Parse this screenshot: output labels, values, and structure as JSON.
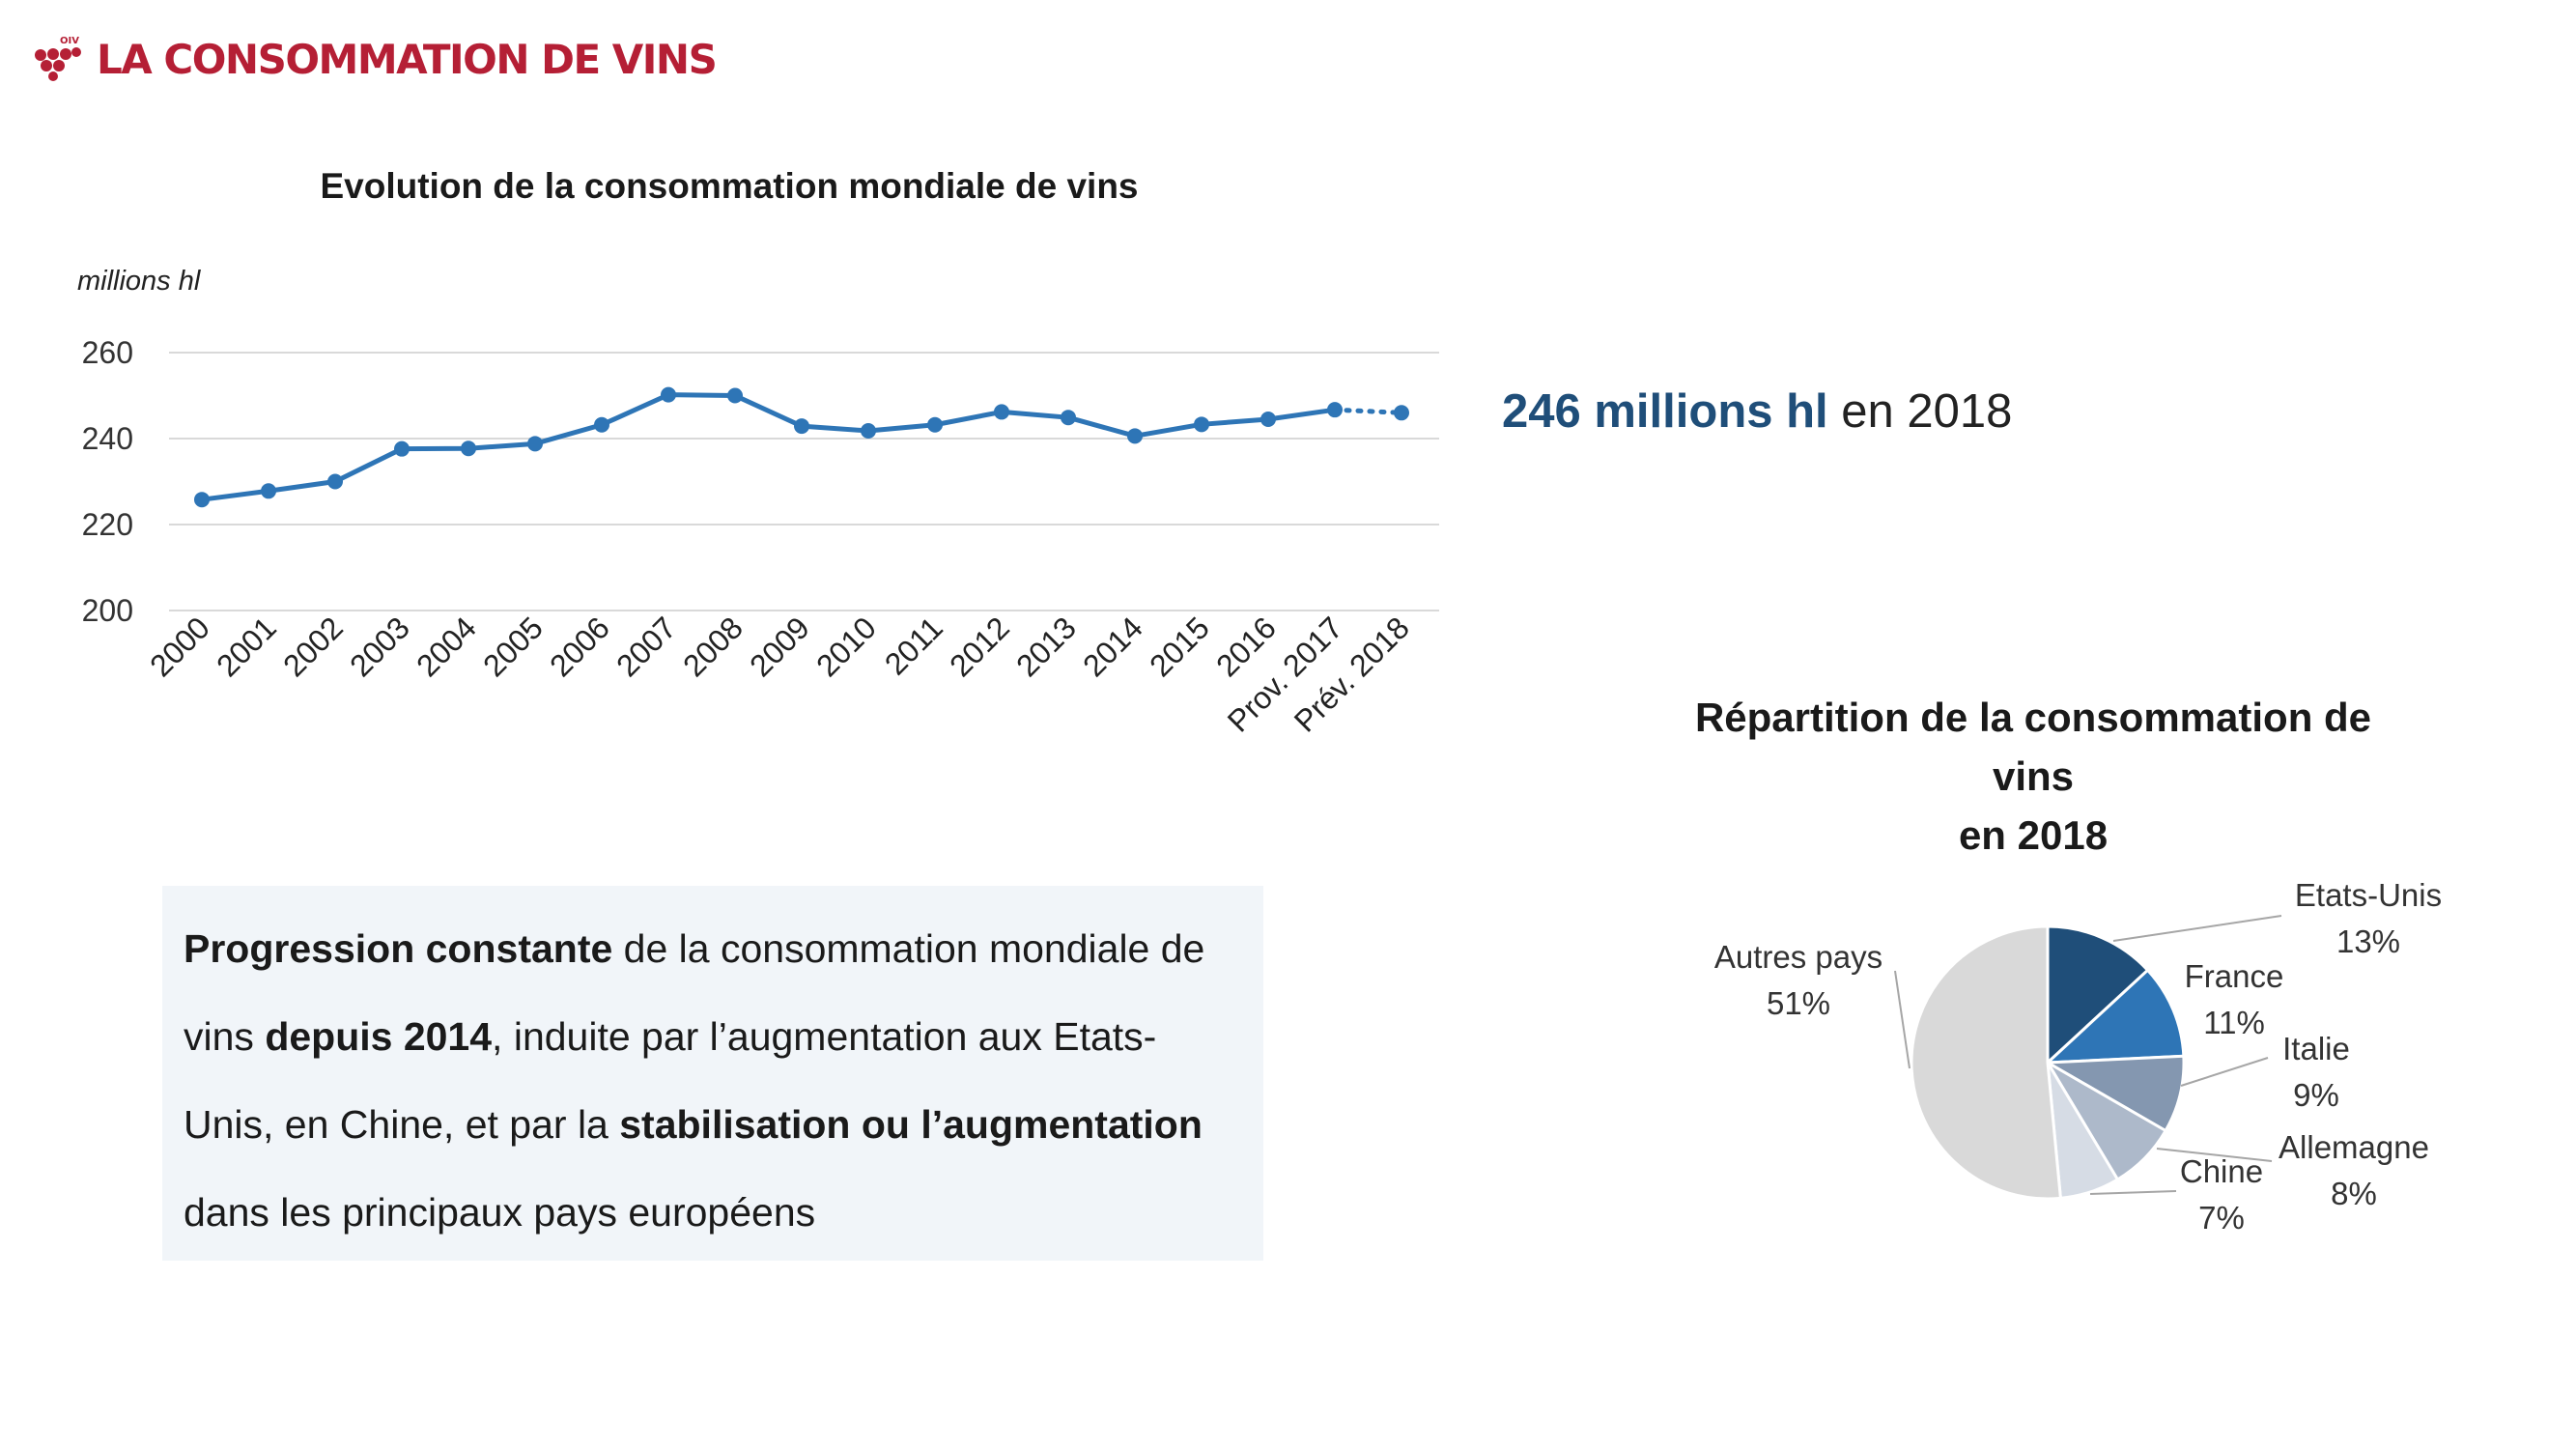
{
  "header": {
    "title": "LA CONSOMMATION DE VINS",
    "logo_icon": "grape-cluster-icon",
    "logo_text": "OIV",
    "brand_color": "#b51f35"
  },
  "headline": {
    "emphasis": "246 millions hl",
    "rest": " en 2018",
    "accent_color": "#1f4e79"
  },
  "text_box": {
    "p1_bold": "Progression constante",
    "p2": " de la consommation mondiale de vins ",
    "p3_bold": "depuis 2014",
    "p4": ", induite par l’augmentation aux Etats-Unis, en Chine, et par la ",
    "p5_bold": "stabilisation ou l’augmentation",
    "p6": " dans les principaux pays européens"
  },
  "chart_data": [
    {
      "type": "line",
      "title": "Evolution de la consommation mondiale de vins",
      "ylabel": "millions hl",
      "xlabel": "",
      "ylim": [
        200,
        260
      ],
      "yticks": [
        200,
        220,
        240,
        260
      ],
      "grid": true,
      "categories": [
        "2000",
        "2001",
        "2002",
        "2003",
        "2004",
        "2005",
        "2006",
        "2007",
        "2008",
        "2009",
        "2010",
        "2011",
        "2012",
        "2013",
        "2014",
        "2015",
        "2016",
        "Prov. 2017",
        "Prév. 2018"
      ],
      "series": [
        {
          "name": "Consommation mondiale",
          "values": [
            225.8,
            227.8,
            230.0,
            237.6,
            237.7,
            238.8,
            243.2,
            250.2,
            250.0,
            242.9,
            241.8,
            243.2,
            246.2,
            244.9,
            240.6,
            243.3,
            244.5,
            246.7,
            246.0
          ],
          "color": "#2e75b6",
          "last_segment_style": "dotted"
        }
      ]
    },
    {
      "type": "pie",
      "title_lines": [
        "Répartition de la consommation de",
        "vins",
        "en 2018"
      ],
      "slices": [
        {
          "label": "Etats-Unis",
          "value": 13,
          "display": "13%",
          "color": "#1f4e79"
        },
        {
          "label": "France",
          "value": 11,
          "display": "11%",
          "color": "#2e75b6"
        },
        {
          "label": "Italie",
          "value": 9,
          "display": "9%",
          "color": "#8497b0"
        },
        {
          "label": "Allemagne",
          "value": 8,
          "display": "8%",
          "color": "#adb9ca"
        },
        {
          "label": "Chine",
          "value": 7,
          "display": "7%",
          "color": "#d6dce5"
        },
        {
          "label": "Autres pays",
          "value": 51,
          "display": "51%",
          "color": "#d9d9d9"
        }
      ]
    }
  ]
}
